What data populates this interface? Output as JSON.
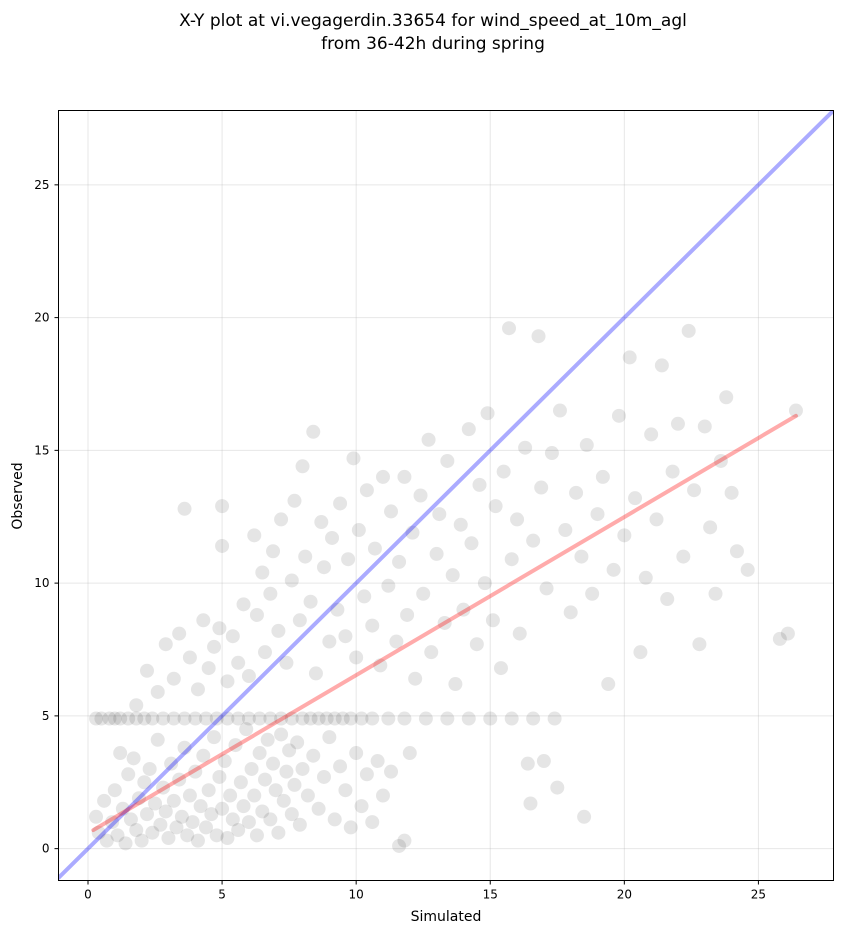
{
  "chart_data": {
    "type": "scatter",
    "title": "X-Y plot at vi.vegagerdin.33654 for wind_speed_at_10m_agl",
    "subtitle": "from 36-42h during spring",
    "xlabel": "Simulated",
    "ylabel": "Observed",
    "xlim": [
      -1.1,
      27.8
    ],
    "ylim": [
      -1.2,
      27.8
    ],
    "x_ticks": [
      0,
      5,
      10,
      15,
      20,
      25
    ],
    "y_ticks": [
      0,
      5,
      10,
      15,
      20,
      25
    ],
    "grid": true,
    "legend": "none",
    "point_color": "#000000",
    "point_alpha": 0.1,
    "identity_line": {
      "color": "#0000ff",
      "from": [
        -1.1,
        -1.1
      ],
      "to": [
        27.8,
        27.8
      ]
    },
    "regression_line": {
      "color": "#ff0000",
      "from": [
        0.2,
        0.7
      ],
      "to": [
        26.4,
        16.3
      ]
    },
    "points": [
      [
        0.3,
        4.9
      ],
      [
        0.5,
        4.9
      ],
      [
        0.8,
        4.9
      ],
      [
        1.0,
        4.9
      ],
      [
        1.2,
        4.9
      ],
      [
        1.5,
        4.9
      ],
      [
        1.8,
        4.9
      ],
      [
        2.1,
        4.9
      ],
      [
        2.4,
        4.9
      ],
      [
        2.8,
        4.9
      ],
      [
        3.2,
        4.9
      ],
      [
        3.6,
        4.9
      ],
      [
        4.0,
        4.9
      ],
      [
        4.4,
        4.9
      ],
      [
        4.8,
        4.9
      ],
      [
        5.2,
        4.9
      ],
      [
        5.6,
        4.9
      ],
      [
        6.0,
        4.9
      ],
      [
        6.4,
        4.9
      ],
      [
        6.8,
        4.9
      ],
      [
        7.2,
        4.9
      ],
      [
        7.6,
        4.9
      ],
      [
        8.0,
        4.9
      ],
      [
        8.3,
        4.9
      ],
      [
        8.6,
        4.9
      ],
      [
        8.9,
        4.9
      ],
      [
        9.2,
        4.9
      ],
      [
        9.5,
        4.9
      ],
      [
        9.8,
        4.9
      ],
      [
        10.2,
        4.9
      ],
      [
        10.6,
        4.9
      ],
      [
        11.2,
        4.9
      ],
      [
        11.8,
        4.9
      ],
      [
        12.6,
        4.9
      ],
      [
        13.4,
        4.9
      ],
      [
        14.2,
        4.9
      ],
      [
        15.0,
        4.9
      ],
      [
        15.8,
        4.9
      ],
      [
        16.6,
        4.9
      ],
      [
        17.4,
        4.9
      ],
      [
        0.3,
        1.2
      ],
      [
        0.4,
        0.6
      ],
      [
        0.6,
        1.8
      ],
      [
        0.7,
        0.3
      ],
      [
        0.9,
        1.0
      ],
      [
        1.0,
        2.2
      ],
      [
        1.1,
        0.5
      ],
      [
        1.3,
        1.5
      ],
      [
        1.4,
        0.2
      ],
      [
        1.5,
        2.8
      ],
      [
        1.6,
        1.1
      ],
      [
        1.7,
        3.4
      ],
      [
        1.8,
        0.7
      ],
      [
        1.9,
        1.9
      ],
      [
        2.0,
        0.3
      ],
      [
        2.1,
        2.5
      ],
      [
        2.2,
        1.3
      ],
      [
        2.3,
        3.0
      ],
      [
        2.4,
        0.6
      ],
      [
        2.5,
        1.7
      ],
      [
        2.6,
        4.1
      ],
      [
        2.7,
        0.9
      ],
      [
        2.8,
        2.3
      ],
      [
        2.9,
        1.4
      ],
      [
        3.0,
        0.4
      ],
      [
        3.1,
        3.2
      ],
      [
        3.2,
        1.8
      ],
      [
        3.3,
        0.8
      ],
      [
        3.4,
        2.6
      ],
      [
        3.5,
        1.2
      ],
      [
        3.6,
        3.8
      ],
      [
        3.7,
        0.5
      ],
      [
        3.8,
        2.0
      ],
      [
        3.9,
        1.0
      ],
      [
        4.0,
        2.9
      ],
      [
        4.1,
        0.3
      ],
      [
        4.2,
        1.6
      ],
      [
        4.3,
        3.5
      ],
      [
        4.4,
        0.8
      ],
      [
        4.5,
        2.2
      ],
      [
        4.6,
        1.3
      ],
      [
        4.7,
        4.2
      ],
      [
        4.8,
        0.5
      ],
      [
        4.9,
        2.7
      ],
      [
        5.0,
        1.5
      ],
      [
        5.1,
        3.3
      ],
      [
        5.2,
        0.4
      ],
      [
        5.3,
        2.0
      ],
      [
        5.4,
        1.1
      ],
      [
        5.5,
        3.9
      ],
      [
        5.6,
        0.7
      ],
      [
        5.7,
        2.5
      ],
      [
        5.8,
        1.6
      ],
      [
        5.9,
        4.5
      ],
      [
        6.0,
        1.0
      ],
      [
        6.1,
        3.0
      ],
      [
        6.2,
        2.0
      ],
      [
        6.3,
        0.5
      ],
      [
        6.4,
        3.6
      ],
      [
        6.5,
        1.4
      ],
      [
        6.6,
        2.6
      ],
      [
        6.7,
        4.1
      ],
      [
        6.8,
        1.1
      ],
      [
        6.9,
        3.2
      ],
      [
        7.0,
        2.2
      ],
      [
        7.1,
        0.6
      ],
      [
        7.2,
        4.3
      ],
      [
        7.3,
        1.8
      ],
      [
        7.4,
        2.9
      ],
      [
        7.5,
        3.7
      ],
      [
        7.6,
        1.3
      ],
      [
        7.7,
        2.4
      ],
      [
        7.8,
        4.0
      ],
      [
        7.9,
        0.9
      ],
      [
        8.0,
        3.0
      ],
      [
        8.2,
        2.0
      ],
      [
        8.4,
        3.5
      ],
      [
        8.6,
        1.5
      ],
      [
        8.8,
        2.7
      ],
      [
        9.0,
        4.2
      ],
      [
        9.2,
        1.1
      ],
      [
        9.4,
        3.1
      ],
      [
        9.6,
        2.2
      ],
      [
        9.8,
        0.8
      ],
      [
        10.0,
        3.6
      ],
      [
        10.2,
        1.6
      ],
      [
        10.4,
        2.8
      ],
      [
        10.6,
        1.0
      ],
      [
        10.8,
        3.3
      ],
      [
        11.0,
        2.0
      ],
      [
        11.3,
        2.9
      ],
      [
        11.6,
        0.1
      ],
      [
        11.8,
        0.3
      ],
      [
        12.0,
        3.6
      ],
      [
        1.2,
        3.6
      ],
      [
        1.8,
        5.4
      ],
      [
        2.2,
        6.7
      ],
      [
        2.6,
        5.9
      ],
      [
        2.9,
        7.7
      ],
      [
        3.2,
        6.4
      ],
      [
        3.4,
        8.1
      ],
      [
        3.6,
        12.8
      ],
      [
        3.8,
        7.2
      ],
      [
        4.1,
        6.0
      ],
      [
        4.3,
        8.6
      ],
      [
        4.5,
        6.8
      ],
      [
        4.7,
        7.6
      ],
      [
        4.9,
        8.3
      ],
      [
        5.0,
        11.4
      ],
      [
        5.0,
        12.9
      ],
      [
        5.2,
        6.3
      ],
      [
        5.4,
        8.0
      ],
      [
        5.6,
        7.0
      ],
      [
        5.8,
        9.2
      ],
      [
        6.0,
        6.5
      ],
      [
        6.2,
        11.8
      ],
      [
        6.3,
        8.8
      ],
      [
        6.5,
        10.4
      ],
      [
        6.6,
        7.4
      ],
      [
        6.8,
        9.6
      ],
      [
        6.9,
        11.2
      ],
      [
        7.1,
        8.2
      ],
      [
        7.2,
        12.4
      ],
      [
        7.4,
        7.0
      ],
      [
        7.6,
        10.1
      ],
      [
        7.7,
        13.1
      ],
      [
        7.9,
        8.6
      ],
      [
        8.0,
        14.4
      ],
      [
        8.1,
        11.0
      ],
      [
        8.3,
        9.3
      ],
      [
        8.4,
        15.7
      ],
      [
        8.5,
        6.6
      ],
      [
        8.7,
        12.3
      ],
      [
        8.8,
        10.6
      ],
      [
        9.0,
        7.8
      ],
      [
        9.1,
        11.7
      ],
      [
        9.3,
        9.0
      ],
      [
        9.4,
        13.0
      ],
      [
        9.6,
        8.0
      ],
      [
        9.7,
        10.9
      ],
      [
        9.9,
        14.7
      ],
      [
        10.0,
        7.2
      ],
      [
        10.1,
        12.0
      ],
      [
        10.3,
        9.5
      ],
      [
        10.4,
        13.5
      ],
      [
        10.6,
        8.4
      ],
      [
        10.7,
        11.3
      ],
      [
        10.9,
        6.9
      ],
      [
        11.0,
        14.0
      ],
      [
        11.2,
        9.9
      ],
      [
        11.3,
        12.7
      ],
      [
        11.5,
        7.8
      ],
      [
        11.6,
        10.8
      ],
      [
        11.8,
        14.0
      ],
      [
        11.9,
        8.8
      ],
      [
        12.1,
        11.9
      ],
      [
        12.2,
        6.4
      ],
      [
        12.4,
        13.3
      ],
      [
        12.5,
        9.6
      ],
      [
        12.7,
        15.4
      ],
      [
        12.8,
        7.4
      ],
      [
        13.0,
        11.1
      ],
      [
        13.1,
        12.6
      ],
      [
        13.3,
        8.5
      ],
      [
        13.4,
        14.6
      ],
      [
        13.6,
        10.3
      ],
      [
        13.7,
        6.2
      ],
      [
        13.9,
        12.2
      ],
      [
        14.0,
        9.0
      ],
      [
        14.2,
        15.8
      ],
      [
        14.3,
        11.5
      ],
      [
        14.5,
        7.7
      ],
      [
        14.6,
        13.7
      ],
      [
        14.8,
        10.0
      ],
      [
        14.9,
        16.4
      ],
      [
        15.1,
        8.6
      ],
      [
        15.2,
        12.9
      ],
      [
        15.4,
        6.8
      ],
      [
        15.5,
        14.2
      ],
      [
        15.7,
        19.6
      ],
      [
        15.8,
        10.9
      ],
      [
        16.0,
        12.4
      ],
      [
        16.1,
        8.1
      ],
      [
        16.3,
        15.1
      ],
      [
        16.4,
        3.2
      ],
      [
        16.5,
        1.7
      ],
      [
        16.6,
        11.6
      ],
      [
        16.8,
        19.3
      ],
      [
        16.9,
        13.6
      ],
      [
        17.0,
        3.3
      ],
      [
        17.1,
        9.8
      ],
      [
        17.3,
        14.9
      ],
      [
        17.5,
        2.3
      ],
      [
        17.6,
        16.5
      ],
      [
        17.8,
        12.0
      ],
      [
        18.0,
        8.9
      ],
      [
        18.2,
        13.4
      ],
      [
        18.4,
        11.0
      ],
      [
        18.5,
        1.2
      ],
      [
        18.6,
        15.2
      ],
      [
        18.8,
        9.6
      ],
      [
        19.0,
        12.6
      ],
      [
        19.2,
        14.0
      ],
      [
        19.4,
        6.2
      ],
      [
        19.6,
        10.5
      ],
      [
        19.8,
        16.3
      ],
      [
        20.0,
        11.8
      ],
      [
        20.2,
        18.5
      ],
      [
        20.4,
        13.2
      ],
      [
        20.6,
        7.4
      ],
      [
        20.8,
        10.2
      ],
      [
        21.0,
        15.6
      ],
      [
        21.2,
        12.4
      ],
      [
        21.4,
        18.2
      ],
      [
        21.6,
        9.4
      ],
      [
        21.8,
        14.2
      ],
      [
        22.0,
        16.0
      ],
      [
        22.2,
        11.0
      ],
      [
        22.4,
        19.5
      ],
      [
        22.6,
        13.5
      ],
      [
        22.8,
        7.7
      ],
      [
        23.0,
        15.9
      ],
      [
        23.2,
        12.1
      ],
      [
        23.4,
        9.6
      ],
      [
        23.6,
        14.6
      ],
      [
        23.8,
        17.0
      ],
      [
        24.0,
        13.4
      ],
      [
        24.2,
        11.2
      ],
      [
        24.6,
        10.5
      ],
      [
        25.8,
        7.9
      ],
      [
        26.1,
        8.1
      ],
      [
        26.4,
        16.5
      ]
    ]
  }
}
